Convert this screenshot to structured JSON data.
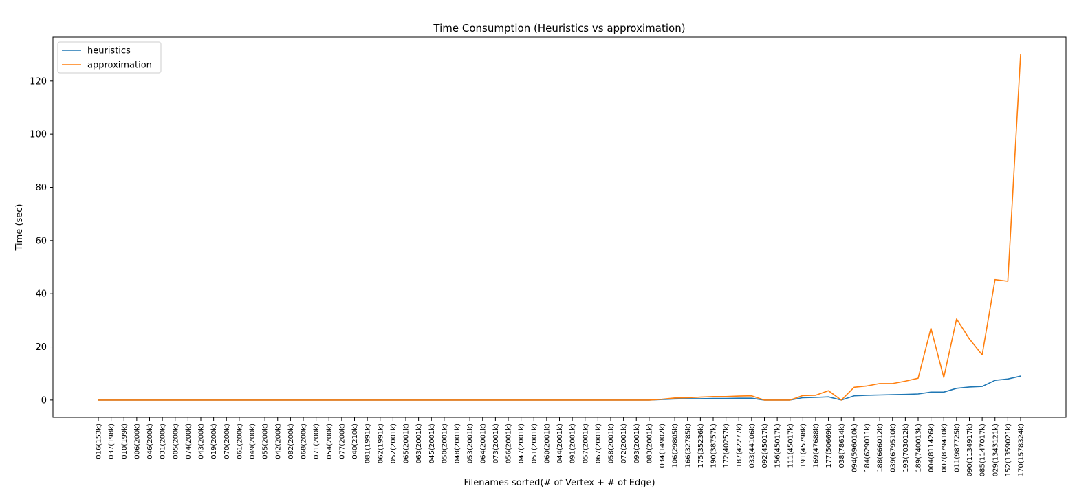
{
  "chart_data": {
    "type": "line",
    "title": "Time Consumption (Heuristics vs approximation)",
    "xlabel": "Filenames sorted(# of Vertex + # of Edge)",
    "ylabel": "Time (sec)",
    "ylim": [
      -6.5,
      136.5
    ],
    "yticks": [
      0,
      20,
      40,
      60,
      80,
      100,
      120
    ],
    "legend_position": "top-left",
    "grid": false,
    "categories": [
      "016(153k)",
      "037(198k)",
      "010(199k)",
      "006(200k)",
      "046(200k)",
      "031(200k)",
      "005(200k)",
      "074(200k)",
      "043(200k)",
      "019(200k)",
      "070(200k)",
      "061(200k)",
      "049(200k)",
      "055(200k)",
      "042(200k)",
      "082(200k)",
      "068(200k)",
      "071(200k)",
      "054(200k)",
      "077(200k)",
      "040(210k)",
      "081(1991k)",
      "062(1991k)",
      "052(2001k)",
      "065(2001k)",
      "063(2001k)",
      "045(2001k)",
      "050(2001k)",
      "048(2001k)",
      "053(2001k)",
      "064(2001k)",
      "073(2001k)",
      "056(2001k)",
      "047(2001k)",
      "051(2001k)",
      "060(2001k)",
      "044(2001k)",
      "091(2001k)",
      "057(2001k)",
      "067(2001k)",
      "058(2001k)",
      "072(2001k)",
      "093(2001k)",
      "083(2001k)",
      "034(14902k)",
      "106(29805k)",
      "166(32785k)",
      "175(35236k)",
      "190(38757k)",
      "172(40257k)",
      "187(42277k)",
      "033(44106k)",
      "092(45017k)",
      "156(45017k)",
      "111(45017k)",
      "191(45798k)",
      "169(47688k)",
      "177(50669k)",
      "038(78614k)",
      "094(596010k)",
      "184(629011k)",
      "188(666012k)",
      "039(679510k)",
      "193(703012k)",
      "189(740013k)",
      "004(811426k)",
      "007(879410k)",
      "011(987725k)",
      "090(1134917k)",
      "085(1147017k)",
      "029(1343121k)",
      "152(1359021k)",
      "170(1578324k)"
    ],
    "series": [
      {
        "name": "heuristics",
        "color": "#1f77b4",
        "values": [
          0,
          0,
          0,
          0,
          0,
          0,
          0,
          0,
          0,
          0,
          0,
          0,
          0,
          0,
          0,
          0,
          0,
          0,
          0,
          0,
          0,
          0,
          0,
          0,
          0,
          0,
          0,
          0,
          0,
          0,
          0,
          0,
          0,
          0,
          0,
          0,
          0,
          0,
          0,
          0,
          0,
          0,
          0,
          0,
          0.2,
          0.4,
          0.5,
          0.5,
          0.6,
          0.6,
          0.7,
          0.7,
          0,
          0,
          0,
          0.9,
          1.0,
          1.2,
          0,
          1.6,
          1.8,
          1.9,
          2.0,
          2.1,
          2.3,
          3.0,
          3.0,
          4.4,
          4.9,
          5.1,
          7.4,
          7.9,
          9.0
        ]
      },
      {
        "name": "approximation",
        "color": "#ff7f0e",
        "values": [
          0,
          0,
          0,
          0,
          0,
          0,
          0,
          0,
          0,
          0,
          0,
          0,
          0,
          0,
          0,
          0,
          0,
          0,
          0,
          0,
          0,
          0,
          0,
          0,
          0,
          0,
          0,
          0,
          0,
          0,
          0,
          0,
          0,
          0,
          0,
          0,
          0,
          0,
          0,
          0,
          0,
          0,
          0,
          0,
          0.3,
          0.8,
          0.9,
          1.1,
          1.3,
          1.3,
          1.5,
          1.6,
          0,
          0,
          0,
          1.7,
          1.8,
          3.5,
          0,
          4.8,
          5.3,
          6.2,
          6.2,
          7.1,
          8.2,
          27.0,
          8.5,
          30.5,
          23.0,
          17.0,
          45.3,
          44.7,
          130.0
        ]
      }
    ]
  }
}
